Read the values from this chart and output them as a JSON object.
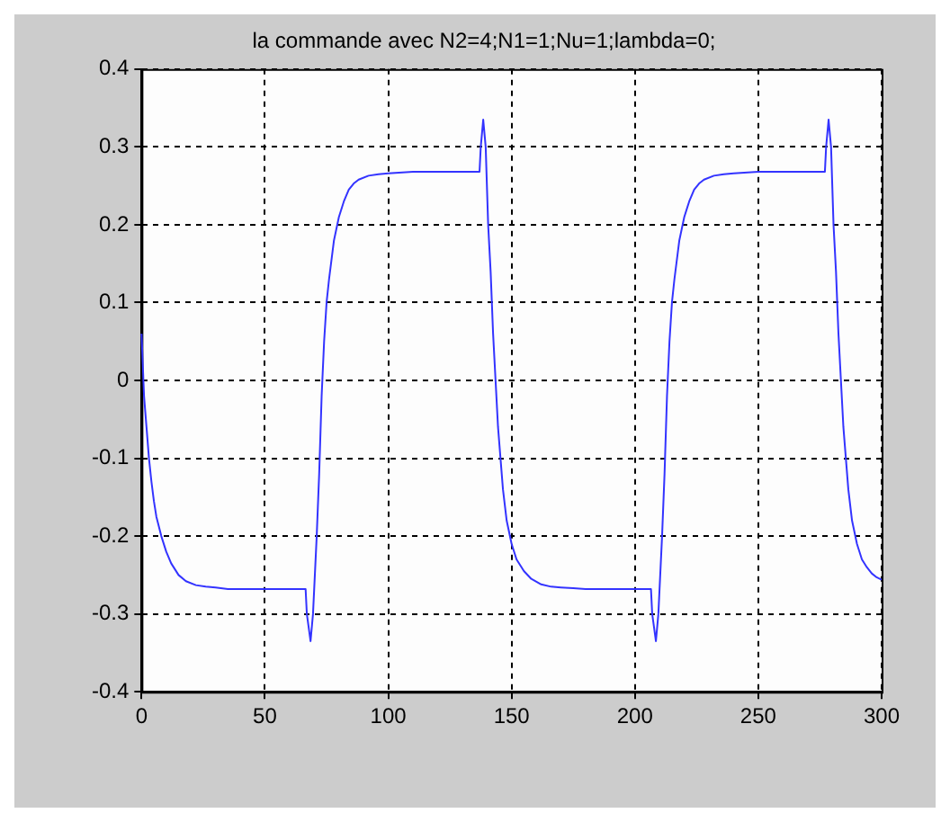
{
  "chart_data": {
    "type": "line",
    "title": "la commande avec N2=4;N1=1;Nu=1;lambda=0;",
    "xlim": [
      0,
      300
    ],
    "ylim": [
      -0.4,
      0.4
    ],
    "xticks": [
      0,
      50,
      100,
      150,
      200,
      250,
      300
    ],
    "yticks": [
      -0.4,
      -0.3,
      -0.2,
      -0.1,
      0,
      0.1,
      0.2,
      0.3,
      0.4
    ],
    "grid": true,
    "legend": false,
    "line_style": "solid",
    "marker": "none",
    "series": [
      {
        "color": "#3333ff",
        "x": [
          0,
          1,
          2,
          3,
          4,
          5,
          6,
          8,
          10,
          12,
          15,
          18,
          22,
          26,
          30,
          35,
          40,
          50,
          60,
          66.5,
          67,
          68.5,
          69.5,
          71,
          72,
          73,
          74,
          75,
          76,
          78,
          80,
          82,
          84,
          86,
          88,
          92,
          96,
          100,
          110,
          120,
          130,
          137,
          137.5,
          138.5,
          139.5,
          140.5,
          141.5,
          142.5,
          143.5,
          144.5,
          145.5,
          146.5,
          148,
          150,
          152,
          155,
          158,
          162,
          166,
          170,
          175,
          180,
          190,
          200,
          206.5,
          207,
          208.5,
          209.5,
          211,
          212,
          213,
          214,
          215,
          216,
          218,
          220,
          222,
          224,
          226,
          228,
          232,
          236,
          240,
          250,
          260,
          270,
          277,
          277.5,
          278.5,
          279.5,
          280.5,
          281.5,
          282.5,
          283.5,
          284.5,
          285.5,
          286.5,
          288,
          290,
          292,
          294,
          296,
          298,
          300
        ],
        "values": [
          0.06,
          -0.02,
          -0.06,
          -0.1,
          -0.13,
          -0.155,
          -0.175,
          -0.2,
          -0.22,
          -0.235,
          -0.25,
          -0.258,
          -0.263,
          -0.265,
          -0.266,
          -0.268,
          -0.268,
          -0.268,
          -0.268,
          -0.268,
          -0.3,
          -0.335,
          -0.3,
          -0.2,
          -0.12,
          -0.02,
          0.05,
          0.1,
          0.13,
          0.18,
          0.21,
          0.23,
          0.245,
          0.253,
          0.258,
          0.263,
          0.265,
          0.266,
          0.268,
          0.268,
          0.268,
          0.268,
          0.3,
          0.335,
          0.3,
          0.2,
          0.14,
          0.06,
          0,
          -0.06,
          -0.1,
          -0.14,
          -0.18,
          -0.21,
          -0.23,
          -0.245,
          -0.255,
          -0.262,
          -0.265,
          -0.266,
          -0.267,
          -0.268,
          -0.268,
          -0.268,
          -0.268,
          -0.3,
          -0.335,
          -0.3,
          -0.2,
          -0.12,
          -0.02,
          0.05,
          0.1,
          0.13,
          0.18,
          0.21,
          0.23,
          0.245,
          0.253,
          0.258,
          0.263,
          0.265,
          0.266,
          0.268,
          0.268,
          0.268,
          0.268,
          0.3,
          0.335,
          0.3,
          0.2,
          0.14,
          0.06,
          0,
          -0.06,
          -0.1,
          -0.14,
          -0.18,
          -0.21,
          -0.23,
          -0.24,
          -0.248,
          -0.253,
          -0.256
        ]
      }
    ]
  }
}
